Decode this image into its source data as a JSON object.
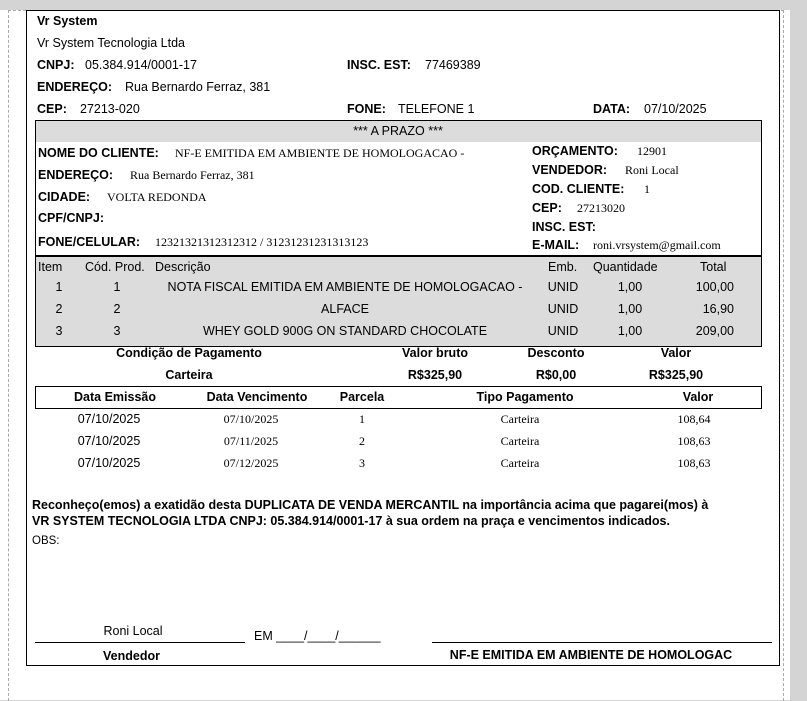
{
  "company": {
    "name": "Vr System",
    "legal_name": "Vr System Tecnologia Ltda",
    "cnpj_label": "CNPJ:",
    "cnpj": "05.384.914/0001-17",
    "insc_label": "INSC. EST:",
    "insc": "77469389",
    "endereco_label": "ENDEREÇO:",
    "endereco": "Rua Bernardo Ferraz, 381",
    "cep_label": "CEP:",
    "cep": "27213-020",
    "fone_label": "FONE:",
    "fone": "TELEFONE 1",
    "data_label": "DATA:",
    "data": "07/10/2025"
  },
  "client": {
    "header": "*** A PRAZO ***",
    "nome_label": "NOME DO CLIENTE:",
    "nome": "NF-E EMITIDA EM AMBIENTE DE HOMOLOGACAO -",
    "endereco_label": "ENDEREÇO:",
    "endereco": "Rua Bernardo Ferraz, 381",
    "cidade_label": "CIDADE:",
    "cidade": "VOLTA REDONDA",
    "cpf_label": "CPF/CNPJ:",
    "fone_label": "FONE/CELULAR:",
    "fone": "12321321312312312 / 31231231231313123",
    "orcamento_label": "ORÇAMENTO:",
    "orcamento": "12901",
    "vendedor_label": "VENDEDOR:",
    "vendedor": "Roni Local",
    "cod_label": "COD. CLIENTE:",
    "cod": "1",
    "cep_label": "CEP:",
    "cep": "27213020",
    "insc_label": "INSC. EST:",
    "email_label": "E-MAIL:",
    "email": "roni.vrsystem@gmail.com"
  },
  "items": {
    "headers": [
      "Item",
      "Cód. Prod.",
      "Descrição",
      "Emb.",
      "Quantidade",
      "Total"
    ],
    "rows": [
      [
        "1",
        "1",
        "NOTA FISCAL EMITIDA EM AMBIENTE DE HOMOLOGACAO -",
        "UNID",
        "1,00",
        "100,00"
      ],
      [
        "2",
        "2",
        "ALFACE",
        "UNID",
        "1,00",
        "16,90"
      ],
      [
        "3",
        "3",
        "WHEY GOLD 900G ON STANDARD CHOCOLATE",
        "UNID",
        "1,00",
        "209,00"
      ]
    ]
  },
  "summary": {
    "headers": [
      "Condição de Pagamento",
      "Valor bruto",
      "Desconto",
      "Valor"
    ],
    "values": [
      "Carteira",
      "R$325,90",
      "R$0,00",
      "R$325,90"
    ]
  },
  "parcels": {
    "headers": [
      "Data Emissão",
      "Data Vencimento",
      "Parcela",
      "Tipo Pagamento",
      "Valor"
    ],
    "rows": [
      [
        "07/10/2025",
        "07/10/2025",
        "1",
        "Carteira",
        "108,64"
      ],
      [
        "07/10/2025",
        "07/11/2025",
        "2",
        "Carteira",
        "108,63"
      ],
      [
        "07/10/2025",
        "07/12/2025",
        "3",
        "Carteira",
        "108,63"
      ]
    ]
  },
  "statement": {
    "line1": "Reconheço(emos) a exatidão desta DUPLICATA DE VENDA MERCANTIL na importância acima que pagarei(mos) à",
    "line2": "VR SYSTEM TECNOLOGIA LTDA CNPJ: 05.384.914/0001-17 à sua ordem na praça e vencimentos indicados.",
    "obs_label": "OBS:"
  },
  "signature": {
    "seller_name": "Roni Local",
    "date_field": "EM ____/____/______",
    "seller_label": "Vendedor",
    "client_label": "NF-E EMITIDA EM AMBIENTE DE HOMOLOGAC"
  }
}
